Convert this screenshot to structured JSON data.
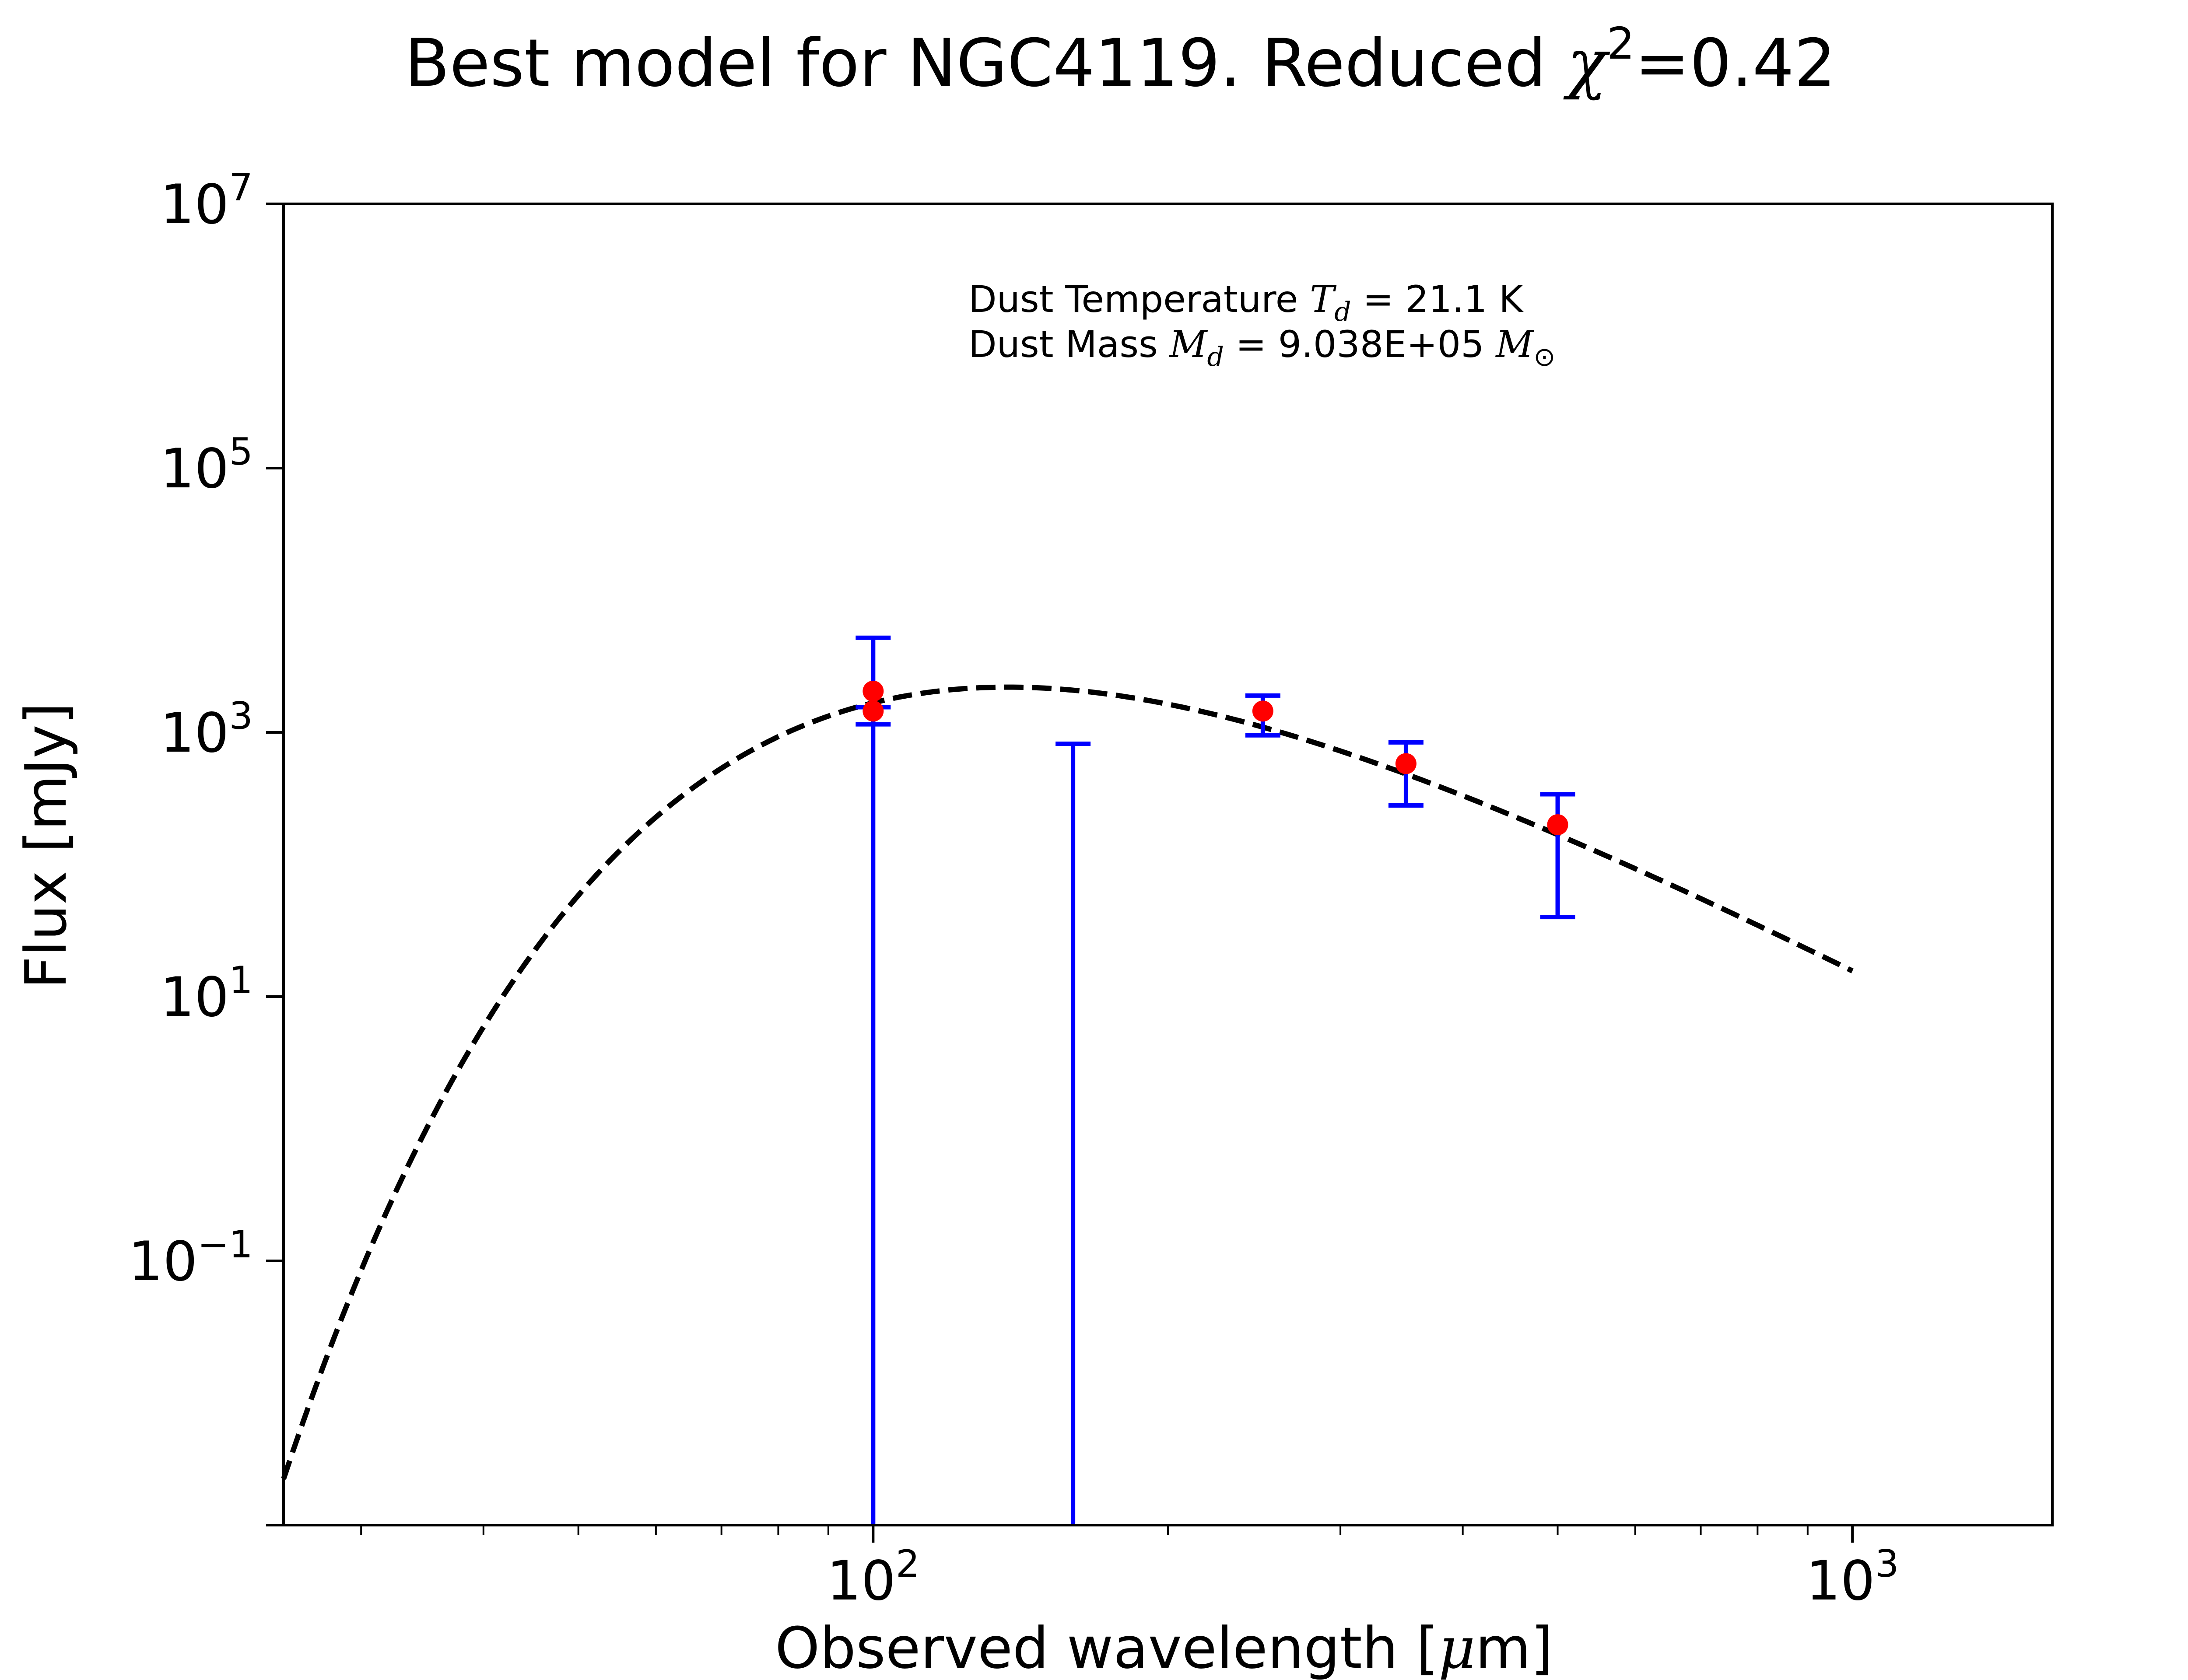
{
  "chart_data": {
    "type": "scatter",
    "title_prefix": "Best model for NGC4119. Reduced ",
    "title_chi": "χ",
    "title_exp": "2",
    "title_suffix": "=0.42",
    "xlabel_prefix": "Observed wavelength [",
    "xlabel_mu": "μ",
    "xlabel_suffix": "m]",
    "ylabel": "Flux [mJy]",
    "x_scale": "log",
    "y_scale": "log",
    "xlim": [
      25,
      1600
    ],
    "ylim": [
      0.001,
      10000000
    ],
    "x_ticks": [
      {
        "value": 100,
        "base": "10",
        "exp": "2"
      },
      {
        "value": 1000,
        "base": "10",
        "exp": "3"
      }
    ],
    "y_ticks": [
      {
        "value": 0.1,
        "base": "10",
        "exp": "−1"
      },
      {
        "value": 10,
        "base": "10",
        "exp": "1"
      },
      {
        "value": 1000,
        "base": "10",
        "exp": "3"
      },
      {
        "value": 100000,
        "base": "10",
        "exp": "5"
      },
      {
        "value": 10000000,
        "base": "10",
        "exp": "7"
      }
    ],
    "annotation": {
      "line1_prefix": "Dust Temperature ",
      "line1_sym": "T",
      "line1_sub": "d",
      "line1_suffix": " = 21.1 K",
      "line2_prefix": "Dust Mass ",
      "line2_sym": "M",
      "line2_sub": "d",
      "line2_value": " = 9.038E+05 ",
      "line2_unit_sym": "M",
      "line2_unit_sub": "⊙"
    },
    "model_curve": {
      "style": "dashed",
      "color": "#000000",
      "x_range": [
        25,
        1000
      ],
      "temperature_K": 21.1,
      "peak": {
        "x": 140,
        "y": 2200
      }
    },
    "data_points": [
      {
        "x": 100,
        "y": 1450,
        "yerr_low": 0.001,
        "yerr_high": 1550
      },
      {
        "x": 100,
        "y": 2050,
        "yerr_low": 1150,
        "yerr_high": 5200
      },
      {
        "x": 160,
        "y": 0.001,
        "yerr_low": 0.001,
        "yerr_high": 820
      },
      {
        "x": 250,
        "y": 1450,
        "yerr_low": 950,
        "yerr_high": 1900
      },
      {
        "x": 350,
        "y": 580,
        "yerr_low": 280,
        "yerr_high": 840
      },
      {
        "x": 500,
        "y": 200,
        "yerr_low": 40,
        "yerr_high": 340
      }
    ],
    "point_color": "#ff0000",
    "errorbar_color": "#0000ff",
    "grid": false,
    "legend": "none"
  }
}
